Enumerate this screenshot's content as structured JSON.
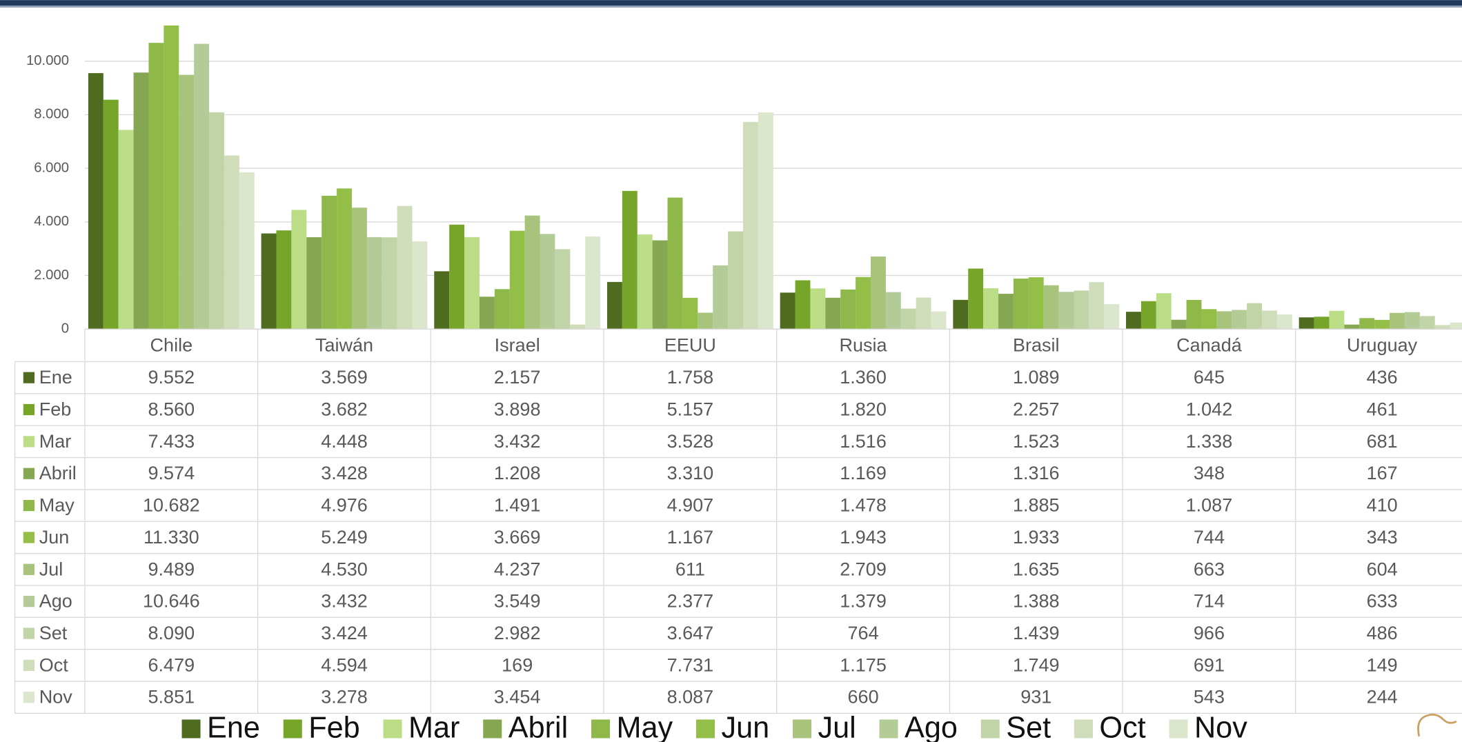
{
  "chart_data": {
    "type": "bar",
    "categories": [
      "Chile",
      "Taiwán",
      "Israel",
      "EEUU",
      "Rusia",
      "Brasil",
      "Canadá",
      "Uruguay"
    ],
    "ylim": [
      0,
      12000
    ],
    "yticks": [
      0,
      {
        "value": 2000,
        "label": "2.000"
      },
      {
        "value": 4000,
        "label": "4.000"
      },
      {
        "value": 6000,
        "label": "6.000"
      },
      {
        "value": 8000,
        "label": "8.000"
      },
      {
        "value": 10000,
        "label": "10.000"
      }
    ],
    "grid": true,
    "series": [
      {
        "name": "Ene",
        "color": "#4e6b1f",
        "values": [
          9552,
          3569,
          2157,
          1758,
          1360,
          1089,
          645,
          436
        ],
        "value_labels": [
          "9.552",
          "3.569",
          "2.157",
          "1.758",
          "1.360",
          "1.089",
          "645",
          "436"
        ]
      },
      {
        "name": "Feb",
        "color": "#76a52a",
        "values": [
          8560,
          3682,
          3898,
          5157,
          1820,
          2257,
          1042,
          461
        ],
        "value_labels": [
          "8.560",
          "3.682",
          "3.898",
          "5.157",
          "1.820",
          "2.257",
          "1.042",
          "461"
        ]
      },
      {
        "name": "Mar",
        "color": "#badd86",
        "values": [
          7433,
          4448,
          3432,
          3528,
          1516,
          1523,
          1338,
          681
        ],
        "value_labels": [
          "7.433",
          "4.448",
          "3.432",
          "3.528",
          "1.516",
          "1.523",
          "1.338",
          "681"
        ]
      },
      {
        "name": "Abril",
        "color": "#86a752",
        "values": [
          9574,
          3428,
          1208,
          3310,
          1169,
          1316,
          348,
          167
        ],
        "value_labels": [
          "9.574",
          "3.428",
          "1.208",
          "3.310",
          "1.169",
          "1.316",
          "348",
          "167"
        ]
      },
      {
        "name": "May",
        "color": "#8fb84b",
        "values": [
          10682,
          4976,
          1491,
          4907,
          1478,
          1885,
          1087,
          410
        ],
        "value_labels": [
          "10.682",
          "4.976",
          "1.491",
          "4.907",
          "1.478",
          "1.885",
          "1.087",
          "410"
        ]
      },
      {
        "name": "Jun",
        "color": "#93bf49",
        "values": [
          11330,
          5249,
          3669,
          1167,
          1943,
          1933,
          744,
          343
        ],
        "value_labels": [
          "11.330",
          "5.249",
          "3.669",
          "1.167",
          "1.943",
          "1.933",
          "744",
          "343"
        ]
      },
      {
        "name": "Jul",
        "color": "#a7c37c",
        "values": [
          9489,
          4530,
          4237,
          611,
          2709,
          1635,
          663,
          604
        ],
        "value_labels": [
          "9.489",
          "4.530",
          "4.237",
          "611",
          "2.709",
          "1.635",
          "663",
          "604"
        ]
      },
      {
        "name": "Ago",
        "color": "#b2cb97",
        "values": [
          10646,
          3432,
          3549,
          2377,
          1379,
          1388,
          714,
          633
        ],
        "value_labels": [
          "10.646",
          "3.432",
          "3.549",
          "2.377",
          "1.379",
          "1.388",
          "714",
          "633"
        ]
      },
      {
        "name": "Set",
        "color": "#c1d4a8",
        "values": [
          8090,
          3424,
          2982,
          3647,
          764,
          1439,
          966,
          486
        ],
        "value_labels": [
          "8.090",
          "3.424",
          "2.982",
          "3.647",
          "764",
          "1.439",
          "966",
          "486"
        ]
      },
      {
        "name": "Oct",
        "color": "#cfddba",
        "values": [
          6479,
          4594,
          169,
          7731,
          1175,
          1749,
          691,
          149
        ],
        "value_labels": [
          "6.479",
          "4.594",
          "169",
          "7.731",
          "1.175",
          "1.749",
          "691",
          "149"
        ]
      },
      {
        "name": "Nov",
        "color": "#dbe6cd",
        "values": [
          5851,
          3278,
          3454,
          8087,
          660,
          931,
          543,
          244
        ],
        "value_labels": [
          "5.851",
          "3.278",
          "3.454",
          "8.087",
          "660",
          "931",
          "543",
          "244"
        ]
      }
    ]
  }
}
